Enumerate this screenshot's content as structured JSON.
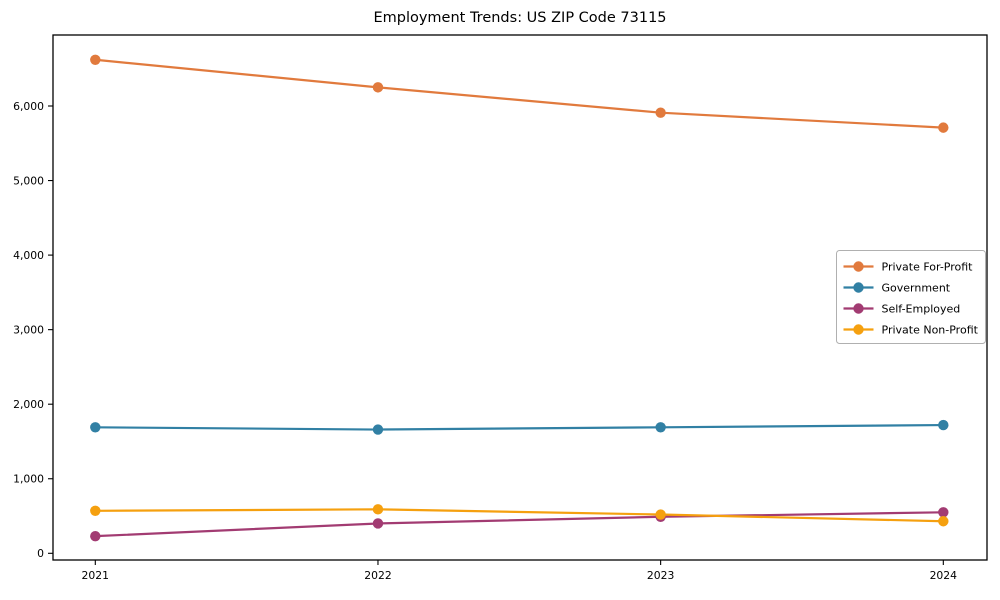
{
  "figure": {
    "background": "#ffffff",
    "spine_color": "#000000",
    "legend_border_color": "#b0b0b0"
  },
  "chart_data": {
    "type": "line",
    "title": "Employment Trends: US ZIP Code 73115",
    "xlabel": "",
    "ylabel": "",
    "x": [
      "2021",
      "2022",
      "2023",
      "2024"
    ],
    "series": [
      {
        "name": "Private For-Profit",
        "color": "#E17A3D",
        "values": [
          6620,
          6250,
          5910,
          5710
        ]
      },
      {
        "name": "Government",
        "color": "#3180A4",
        "values": [
          1690,
          1660,
          1690,
          1720
        ]
      },
      {
        "name": "Self-Employed",
        "color": "#A23B72",
        "values": [
          230,
          400,
          490,
          550
        ]
      },
      {
        "name": "Private Non-Profit",
        "color": "#F5A00F",
        "values": [
          570,
          590,
          520,
          430
        ]
      }
    ],
    "ylim": [
      0,
      6950
    ],
    "yticks": [
      0,
      1000,
      2000,
      3000,
      4000,
      5000,
      6000
    ],
    "ytick_labels": [
      "0",
      "1,000",
      "2,000",
      "3,000",
      "4,000",
      "5,000",
      "6,000"
    ],
    "grid": false,
    "legend_position": "center right",
    "marker": "circle"
  }
}
